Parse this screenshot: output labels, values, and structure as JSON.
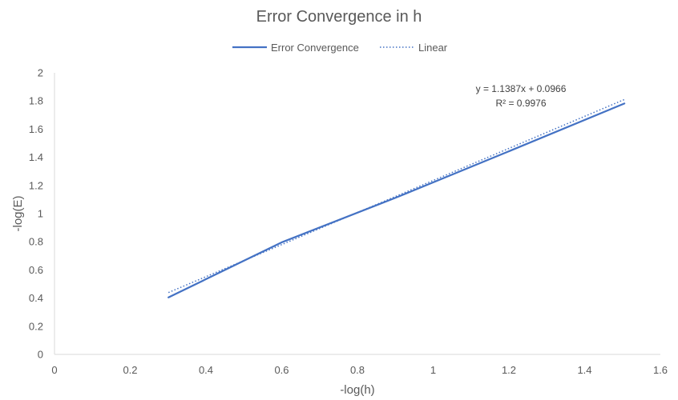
{
  "chart_data": {
    "type": "line",
    "title": "Error Convergence in h",
    "xlabel": "-log(h)",
    "ylabel": "-log(E)",
    "xlim": [
      0,
      1.6
    ],
    "ylim": [
      0,
      2
    ],
    "x_ticks": [
      "0",
      "0.2",
      "0.4",
      "0.6",
      "0.8",
      "1",
      "1.2",
      "1.4",
      "1.6"
    ],
    "y_ticks": [
      "0",
      "0.2",
      "0.4",
      "0.6",
      "0.8",
      "1",
      "1.2",
      "1.4",
      "1.6",
      "1.8",
      "2"
    ],
    "grid": false,
    "legend_position": "top",
    "series": [
      {
        "name": "Error Convergence",
        "color": "#4472C4",
        "style": "solid",
        "x": [
          0.301,
          0.602,
          0.903,
          1.204,
          1.505
        ],
        "y": [
          0.405,
          0.798,
          1.115,
          1.447,
          1.782
        ]
      }
    ],
    "trendline": {
      "name": "Linear",
      "color": "#4472C4",
      "style": "dotted",
      "slope": 1.1387,
      "intercept": 0.0966,
      "x_range": [
        0.301,
        1.505
      ],
      "equation": "y = 1.1387x + 0.0966",
      "r_squared": "R² = 0.9976"
    }
  }
}
